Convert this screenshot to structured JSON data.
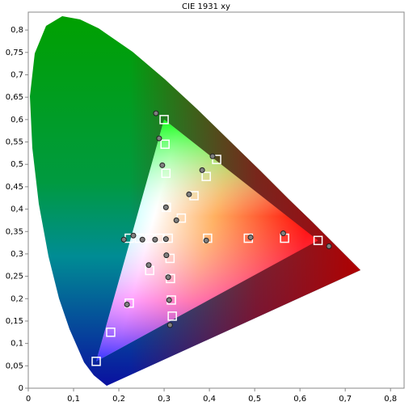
{
  "chart_data": {
    "type": "scatter",
    "title": "CIE 1931 xy",
    "xlim": [
      0,
      0.83
    ],
    "ylim": [
      0,
      0.84
    ],
    "xticks": [
      0,
      {
        "value": 0.1,
        "label": "0,1"
      },
      {
        "value": 0.2,
        "label": "0,2"
      },
      {
        "value": 0.3,
        "label": "0,3"
      },
      {
        "value": 0.4,
        "label": "0,4"
      },
      {
        "value": 0.5,
        "label": "0,5"
      },
      {
        "value": 0.6,
        "label": "0,6"
      },
      {
        "value": 0.7,
        "label": "0,7"
      },
      {
        "value": 0.8,
        "label": "0,8"
      }
    ],
    "yticks": [
      0,
      {
        "value": 0.05,
        "label": "0,05"
      },
      {
        "value": 0.1,
        "label": "0,1"
      },
      {
        "value": 0.15,
        "label": "0,15"
      },
      {
        "value": 0.2,
        "label": "0,2"
      },
      {
        "value": 0.25,
        "label": "0,25"
      },
      {
        "value": 0.3,
        "label": "0,3"
      },
      {
        "value": 0.35,
        "label": "0,35"
      },
      {
        "value": 0.4,
        "label": "0,4"
      },
      {
        "value": 0.45,
        "label": "0,45"
      },
      {
        "value": 0.5,
        "label": "0,5"
      },
      {
        "value": 0.55,
        "label": "0,55"
      },
      {
        "value": 0.6,
        "label": "0,6"
      },
      {
        "value": 0.65,
        "label": "0,65"
      },
      {
        "value": 0.7,
        "label": "0,7"
      },
      {
        "value": 0.75,
        "label": "0,75"
      },
      {
        "value": 0.8,
        "label": "0,8"
      }
    ],
    "series": [
      {
        "marker": "square",
        "color": "#ffffff",
        "x": [
          0.64,
          0.3,
          0.15,
          0.182,
          0.223,
          0.268,
          0.302,
          0.304,
          0.305,
          0.338,
          0.366,
          0.393,
          0.416,
          0.566,
          0.486,
          0.396,
          0.309,
          0.223,
          0.245,
          0.268,
          0.289,
          0.313,
          0.314,
          0.316,
          0.318
        ],
        "values": [
          0.33,
          0.6,
          0.06,
          0.125,
          0.19,
          0.263,
          0.545,
          0.48,
          0.404,
          0.38,
          0.43,
          0.473,
          0.511,
          0.335,
          0.335,
          0.335,
          0.335,
          0.335,
          0.335,
          0.335,
          0.335,
          0.29,
          0.245,
          0.197,
          0.161
        ]
      },
      {
        "marker": "circle",
        "color": "#808080",
        "x": [
          0.282,
          0.289,
          0.296,
          0.304,
          0.327,
          0.355,
          0.384,
          0.407,
          0.664,
          0.563,
          0.491,
          0.393,
          0.304,
          0.211,
          0.232,
          0.252,
          0.28,
          0.305,
          0.266,
          0.309,
          0.311,
          0.218,
          0.313
        ],
        "values": [
          0.614,
          0.558,
          0.498,
          0.404,
          0.375,
          0.433,
          0.487,
          0.518,
          0.317,
          0.346,
          0.337,
          0.33,
          0.333,
          0.332,
          0.341,
          0.332,
          0.332,
          0.297,
          0.275,
          0.248,
          0.197,
          0.187,
          0.141
        ]
      }
    ]
  }
}
